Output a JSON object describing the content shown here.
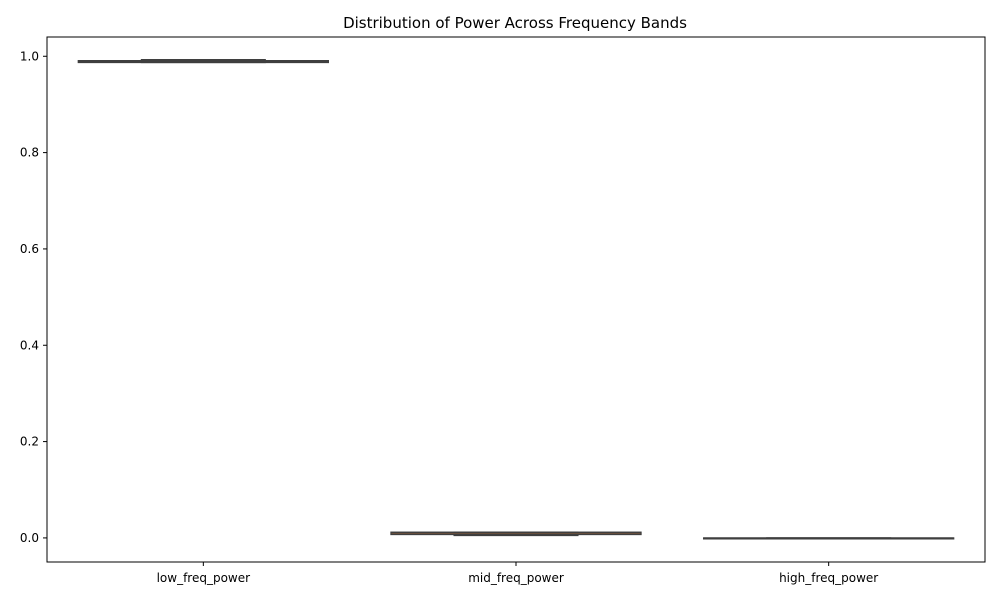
{
  "chart_data": {
    "type": "box",
    "title": "Distribution of Power Across Frequency Bands",
    "xlabel": "",
    "ylabel": "",
    "categories": [
      "low_freq_power",
      "mid_freq_power",
      "high_freq_power"
    ],
    "ylim": [
      -0.05,
      1.04
    ],
    "yticks": [
      0.0,
      0.2,
      0.4,
      0.6,
      0.8,
      1.0
    ],
    "ytick_labels": [
      "0.0",
      "0.2",
      "0.4",
      "0.6",
      "0.8",
      "1.0"
    ],
    "grid": false,
    "legend": "none",
    "boxes": [
      {
        "name": "low_freq_power",
        "color": "#3b75af",
        "q1": 0.987,
        "q3": 0.991,
        "median": 0.989,
        "whisker_low": 0.987,
        "whisker_high": 0.993
      },
      {
        "name": "mid_freq_power",
        "color": "#ef8636",
        "q1": 0.007,
        "q3": 0.012,
        "median": 0.01,
        "whisker_low": 0.005,
        "whisker_high": 0.012
      },
      {
        "name": "high_freq_power",
        "color": "#519e3e",
        "q1": 0.0,
        "q3": 0.0,
        "median": 0.0,
        "whisker_low": 0.0,
        "whisker_high": 0.0
      }
    ]
  }
}
